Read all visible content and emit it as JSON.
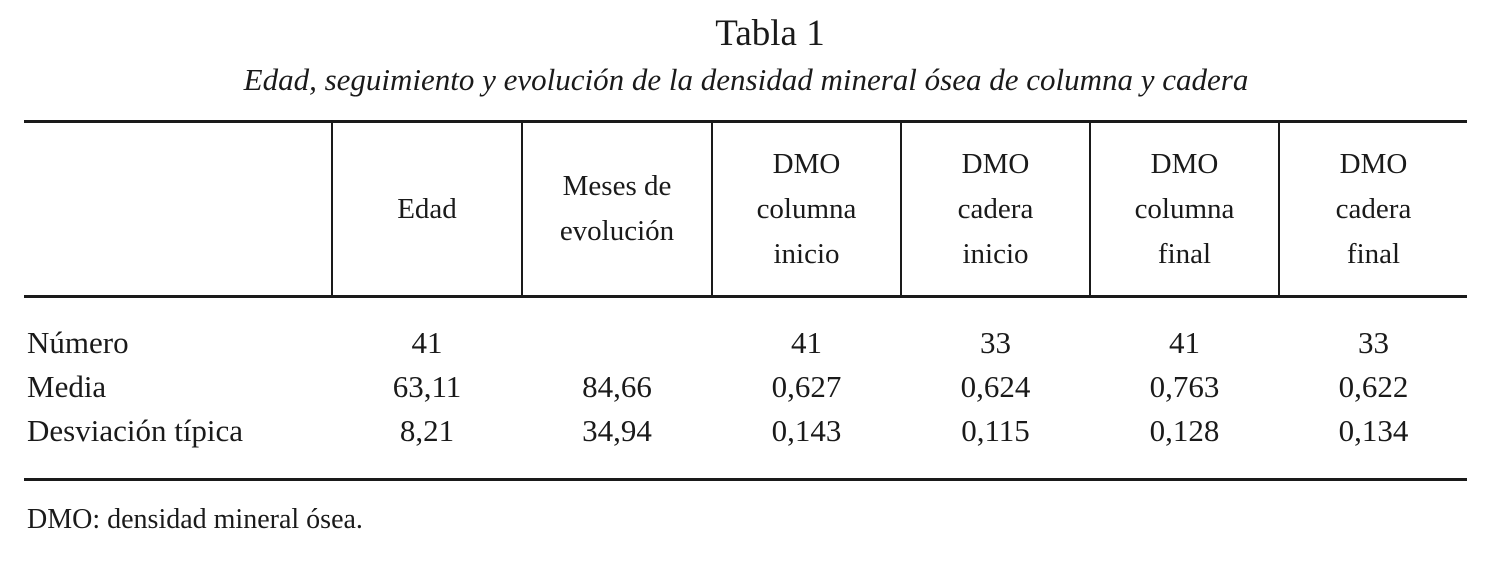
{
  "table": {
    "title": "Tabla 1",
    "subtitle": "Edad, seguimiento y evolución de la densidad mineral ósea de columna y cadera",
    "columns": [
      {
        "label": "Edad"
      },
      {
        "label": "Meses de\nevolución"
      },
      {
        "label": "DMO\ncolumna\ninicio"
      },
      {
        "label": "DMO\ncadera\ninicio"
      },
      {
        "label": "DMO\ncolumna\nfinal"
      },
      {
        "label": "DMO\ncadera\nfinal"
      }
    ],
    "rows": [
      {
        "label": "Número",
        "values": [
          "41",
          "",
          "41",
          "33",
          "41",
          "33"
        ]
      },
      {
        "label": "Media",
        "values": [
          "63,11",
          "84,66",
          "0,627",
          "0,624",
          "0,763",
          "0,622"
        ]
      },
      {
        "label": "Desviación típica",
        "values": [
          "8,21",
          "34,94",
          "0,143",
          "0,115",
          "0,128",
          "0,134"
        ]
      }
    ],
    "footnote": "DMO: densidad mineral ósea."
  }
}
